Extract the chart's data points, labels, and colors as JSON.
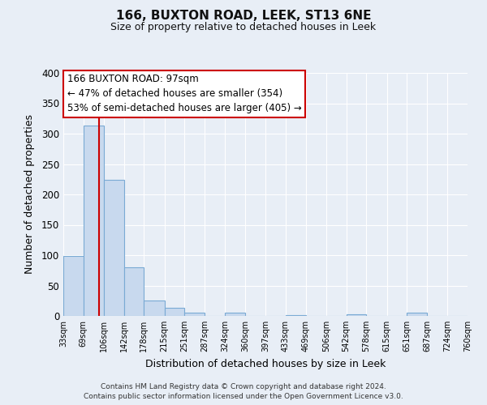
{
  "title": "166, BUXTON ROAD, LEEK, ST13 6NE",
  "subtitle": "Size of property relative to detached houses in Leek",
  "xlabel": "Distribution of detached houses by size in Leek",
  "ylabel": "Number of detached properties",
  "bin_edges": [
    33,
    69,
    106,
    142,
    178,
    215,
    251,
    287,
    324,
    360,
    397,
    433,
    469,
    506,
    542,
    578,
    615,
    651,
    687,
    724,
    760
  ],
  "counts": [
    99,
    313,
    224,
    80,
    25,
    13,
    5,
    0,
    6,
    0,
    0,
    1,
    0,
    0,
    3,
    0,
    0,
    5,
    0,
    0
  ],
  "bar_color": "#c8d9ee",
  "bar_edge_color": "#7aaad4",
  "vline_x": 97,
  "vline_color": "#cc0000",
  "ylim": [
    0,
    400
  ],
  "yticks": [
    0,
    50,
    100,
    150,
    200,
    250,
    300,
    350,
    400
  ],
  "annotation_box_text": "166 BUXTON ROAD: 97sqm\n← 47% of detached houses are smaller (354)\n53% of semi-detached houses are larger (405) →",
  "annotation_box_color": "#ffffff",
  "annotation_box_edge_color": "#cc0000",
  "footer_line1": "Contains HM Land Registry data © Crown copyright and database right 2024.",
  "footer_line2": "Contains public sector information licensed under the Open Government Licence v3.0.",
  "bg_color": "#e8eef6",
  "plot_bg_color": "#e8eef6",
  "grid_color": "#ffffff"
}
